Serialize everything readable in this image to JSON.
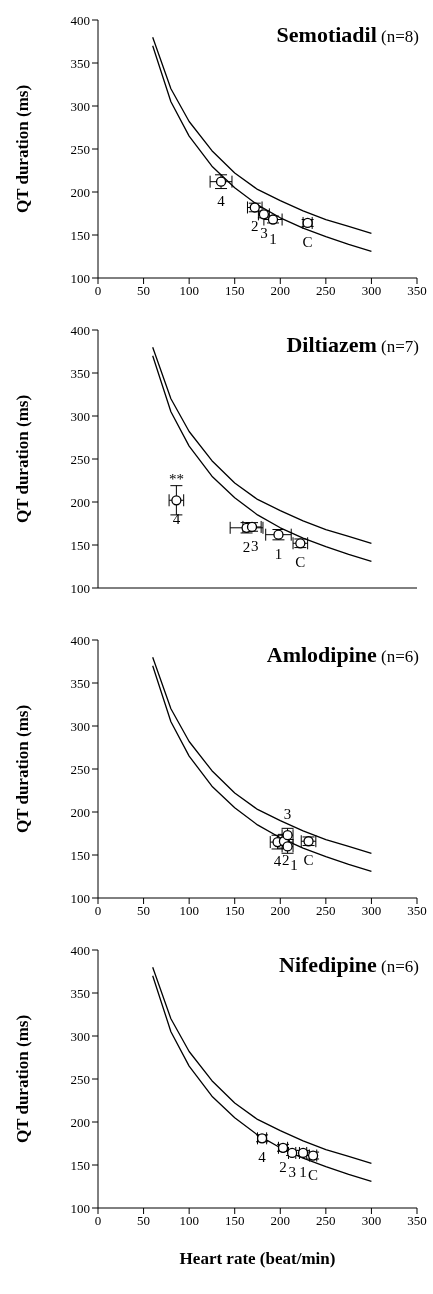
{
  "chart_data": [
    {
      "type": "scatter",
      "title": "Semotiadil (n=8)",
      "ylabel": "QT duration (ms)",
      "xlim": [
        0,
        350
      ],
      "xticks": [
        0,
        50,
        100,
        150,
        200,
        250,
        300,
        350
      ],
      "ylim": [
        100,
        400
      ],
      "yticks": [
        100,
        150,
        200,
        250,
        300,
        350,
        400
      ],
      "series": [
        {
          "type": "line",
          "color": "#000000",
          "x": [
            60,
            80,
            100,
            125,
            150,
            175,
            200,
            225,
            250,
            275,
            300
          ],
          "values": [
            380,
            320,
            282,
            248,
            222,
            203,
            190,
            178,
            168,
            160,
            152
          ]
        },
        {
          "type": "line",
          "color": "#000000",
          "x": [
            60,
            80,
            100,
            125,
            150,
            175,
            200,
            225,
            250,
            275,
            300
          ],
          "values": [
            370,
            305,
            265,
            230,
            205,
            185,
            170,
            158,
            148,
            139,
            131
          ]
        },
        {
          "color": "#000000",
          "marker": "circle",
          "x": [
            135,
            172,
            182,
            192,
            230
          ],
          "values": [
            212,
            182,
            174,
            168,
            164
          ],
          "errors": [
            8,
            5,
            4,
            4,
            4
          ],
          "xerrors": [
            12,
            8,
            6,
            10,
            5
          ]
        }
      ],
      "annotations": [
        {
          "text": "4",
          "x": 135,
          "y": 212
        },
        {
          "text": "2",
          "x": 172,
          "y": 182
        },
        {
          "text": "3",
          "x": 182,
          "y": 174
        },
        {
          "text": "1",
          "x": 192,
          "y": 168
        },
        {
          "text": "C",
          "x": 230,
          "y": 164
        }
      ]
    },
    {
      "type": "scatter",
      "title": "Diltiazem (n=7)",
      "ylabel": "QT duration (ms)",
      "xlim": [
        0,
        350
      ],
      "xticks": [
        0,
        50,
        100,
        150,
        200,
        250,
        300,
        350
      ],
      "ylim": [
        100,
        400
      ],
      "yticks": [
        100,
        150,
        200,
        250,
        300,
        350,
        400
      ],
      "tick_labels": "y",
      "series": [
        {
          "type": "line",
          "color": "#000000",
          "x": [
            60,
            80,
            100,
            125,
            150,
            175,
            200,
            225,
            250,
            275,
            300
          ],
          "values": [
            380,
            320,
            282,
            248,
            222,
            203,
            190,
            178,
            168,
            160,
            152
          ]
        },
        {
          "type": "line",
          "color": "#000000",
          "x": [
            60,
            80,
            100,
            125,
            150,
            175,
            200,
            225,
            250,
            275,
            300
          ],
          "values": [
            370,
            305,
            265,
            230,
            205,
            185,
            170,
            158,
            148,
            139,
            131
          ]
        },
        {
          "color": "#000000",
          "marker": "circle",
          "x": [
            86,
            163,
            169,
            198,
            222
          ],
          "values": [
            202,
            170,
            171,
            162,
            152
          ],
          "errors": [
            17,
            6,
            5,
            6,
            5
          ],
          "xerrors": [
            8,
            18,
            10,
            14,
            8
          ]
        }
      ],
      "annotations": [
        {
          "text": "**",
          "x": 86,
          "y": 202
        },
        {
          "text": "4",
          "x": 86,
          "y": 202
        },
        {
          "text": "2",
          "x": 163,
          "y": 170
        },
        {
          "text": "3",
          "x": 169,
          "y": 171
        },
        {
          "text": "1",
          "x": 198,
          "y": 162
        },
        {
          "text": "C",
          "x": 222,
          "y": 152
        }
      ]
    },
    {
      "type": "scatter",
      "title": "Amlodipine (n=6)",
      "ylabel": "QT duration (ms)",
      "xlim": [
        0,
        350
      ],
      "xticks": [
        0,
        50,
        100,
        150,
        200,
        250,
        300,
        350
      ],
      "ylim": [
        100,
        400
      ],
      "yticks": [
        100,
        150,
        200,
        250,
        300,
        350,
        400
      ],
      "series": [
        {
          "type": "line",
          "color": "#000000",
          "x": [
            60,
            80,
            100,
            125,
            150,
            175,
            200,
            225,
            250,
            275,
            300
          ],
          "values": [
            380,
            320,
            282,
            248,
            222,
            203,
            190,
            178,
            168,
            160,
            152
          ]
        },
        {
          "type": "line",
          "color": "#000000",
          "x": [
            60,
            80,
            100,
            125,
            150,
            175,
            200,
            225,
            250,
            275,
            300
          ],
          "values": [
            370,
            305,
            265,
            230,
            205,
            185,
            170,
            158,
            148,
            139,
            131
          ]
        },
        {
          "color": "#000000",
          "marker": "circle",
          "x": [
            197,
            204,
            208,
            208,
            231
          ],
          "values": [
            165,
            166,
            173,
            160,
            166
          ],
          "errors": [
            8,
            8,
            8,
            8,
            5
          ],
          "xerrors": [
            8,
            6,
            6,
            6,
            8
          ]
        }
      ],
      "annotations": [
        {
          "text": "3",
          "x": 208,
          "y": 173
        },
        {
          "text": "4",
          "x": 197,
          "y": 165
        },
        {
          "text": "2",
          "x": 204,
          "y": 166
        },
        {
          "text": "1",
          "x": 208,
          "y": 160
        },
        {
          "text": "C",
          "x": 231,
          "y": 166
        }
      ]
    },
    {
      "type": "scatter",
      "title": "Nifedipine (n=6)",
      "ylabel": "QT duration (ms)",
      "xlabel": "Heart rate (beat/min)",
      "xlim": [
        0,
        350
      ],
      "xticks": [
        0,
        50,
        100,
        150,
        200,
        250,
        300,
        350
      ],
      "ylim": [
        100,
        400
      ],
      "yticks": [
        100,
        150,
        200,
        250,
        300,
        350,
        400
      ],
      "series": [
        {
          "type": "line",
          "color": "#000000",
          "x": [
            60,
            80,
            100,
            125,
            150,
            175,
            200,
            225,
            250,
            275,
            300
          ],
          "values": [
            380,
            320,
            282,
            248,
            222,
            203,
            190,
            178,
            168,
            160,
            152
          ]
        },
        {
          "type": "line",
          "color": "#000000",
          "x": [
            60,
            80,
            100,
            125,
            150,
            175,
            200,
            225,
            250,
            275,
            300
          ],
          "values": [
            370,
            305,
            265,
            230,
            205,
            185,
            170,
            158,
            148,
            139,
            131
          ]
        },
        {
          "color": "#000000",
          "marker": "circle",
          "x": [
            180,
            203,
            213,
            225,
            236
          ],
          "values": [
            181,
            170,
            164,
            164,
            161
          ],
          "errors": [
            4,
            4,
            3,
            3,
            4
          ],
          "xerrors": [
            5,
            5,
            4,
            4,
            4
          ]
        }
      ],
      "annotations": [
        {
          "text": "4",
          "x": 180,
          "y": 181
        },
        {
          "text": "2",
          "x": 203,
          "y": 170
        },
        {
          "text": "3",
          "x": 213,
          "y": 164
        },
        {
          "text": "1",
          "x": 225,
          "y": 164
        },
        {
          "text": "C",
          "x": 236,
          "y": 161
        }
      ]
    }
  ]
}
